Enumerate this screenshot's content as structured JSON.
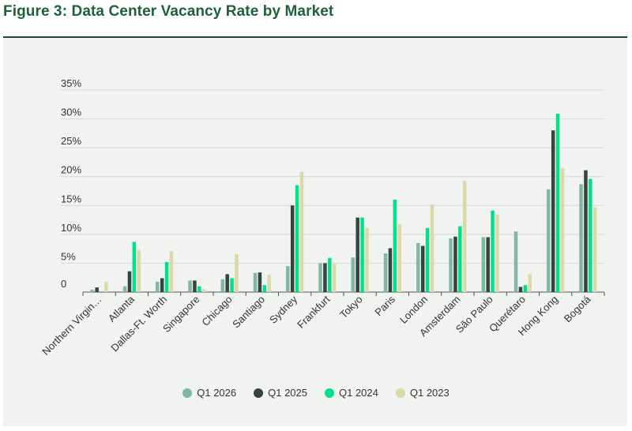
{
  "figure_title": "Figure 3: Data Center Vacancy Rate by Market",
  "colors": {
    "title": "#1f5f3b",
    "rule": "#1f4a33",
    "panel": "#f1f3f1",
    "grid": "#d6d6d6",
    "axis": "#555555"
  },
  "chart_data": {
    "type": "bar",
    "title": "",
    "xlabel": "",
    "ylabel": "",
    "ylim": [
      0,
      35
    ],
    "yticks": [
      0,
      5,
      10,
      15,
      20,
      25,
      30,
      35
    ],
    "ytick_labels": [
      "0",
      "5%",
      "10%",
      "15%",
      "20%",
      "25%",
      "30%",
      "35%"
    ],
    "grid": true,
    "legend_position": "bottom-center",
    "categories": [
      "Northern Virginia",
      "Atlanta",
      "Dallas-Ft. Worth",
      "Singapore",
      "Chicago",
      "Santiago",
      "Sydney",
      "Frankfurt",
      "Tokyo",
      "Paris",
      "London",
      "Amsterdam",
      "São Paulo",
      "Querétaro",
      "Hong Kong",
      "Bogotá"
    ],
    "category_labels": [
      "Northern Virgin…",
      "Atlanta",
      "Dallas-Ft. Worth",
      "Singapore",
      "Chicago",
      "Santiago",
      "Sydney",
      "Frankfurt",
      "Tokyo",
      "Paris",
      "London",
      "Amsterdam",
      "São Paulo",
      "Querétaro",
      "Hong Kong",
      "Bogotá"
    ],
    "series": [
      {
        "name": "Q1 2026",
        "color": "#7fb8a4",
        "values": [
          0.4,
          1.0,
          1.8,
          2.0,
          2.2,
          3.3,
          4.5,
          5.0,
          6.0,
          6.7,
          8.5,
          9.3,
          9.5,
          10.5,
          17.8,
          18.7
        ]
      },
      {
        "name": "Q1 2025",
        "color": "#37433d",
        "values": [
          0.8,
          3.6,
          2.4,
          2.0,
          3.1,
          3.4,
          15.0,
          5.0,
          12.9,
          7.6,
          8.0,
          9.6,
          9.5,
          0.9,
          28.0,
          21.1
        ]
      },
      {
        "name": "Q1 2024",
        "color": "#00e08a",
        "values": [
          0.0,
          8.7,
          5.2,
          1.0,
          2.4,
          1.2,
          18.5,
          5.9,
          12.9,
          16.0,
          11.1,
          11.4,
          14.1,
          1.2,
          30.9,
          19.6
        ]
      },
      {
        "name": "Q1 2023",
        "color": "#ddd9a6",
        "values": [
          1.8,
          7.3,
          7.1,
          0.5,
          6.6,
          3.0,
          20.8,
          4.9,
          11.1,
          11.8,
          15.2,
          19.3,
          13.4,
          3.1,
          21.5,
          14.7
        ]
      }
    ]
  }
}
